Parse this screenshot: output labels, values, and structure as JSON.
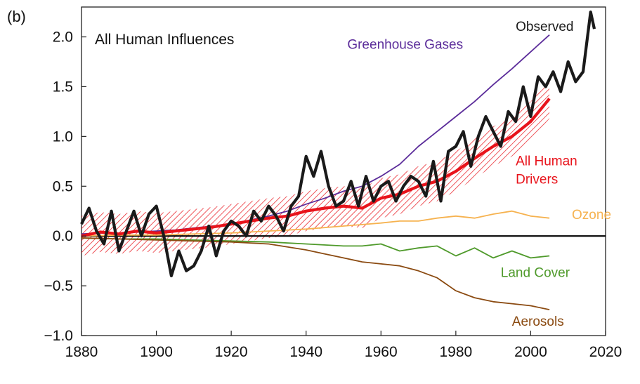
{
  "chart_data": {
    "type": "line",
    "panel_label": "(b)",
    "title": "All Human Influences",
    "xlim": [
      1880,
      2020
    ],
    "ylim": [
      -1.0,
      2.3
    ],
    "xticks": [
      1880,
      1900,
      1920,
      1940,
      1960,
      1980,
      2000,
      2020
    ],
    "yticks": [
      -1.0,
      -0.5,
      0.0,
      0.5,
      1.0,
      1.5,
      2.0
    ],
    "ytick_labels": [
      "−1.0",
      "−0.5",
      "0.0",
      "0.5",
      "1.0",
      "1.5",
      "2.0"
    ],
    "grid": false,
    "zero_line": true,
    "series": [
      {
        "name": "Greenhouse Gases",
        "color": "#5b2c9a",
        "x": [
          1880,
          1885,
          1890,
          1895,
          1900,
          1905,
          1910,
          1915,
          1920,
          1925,
          1930,
          1935,
          1940,
          1945,
          1950,
          1955,
          1960,
          1965,
          1970,
          1975,
          1980,
          1985,
          1990,
          1995,
          2000,
          2005
        ],
        "y": [
          0.02,
          0.03,
          0.02,
          0.04,
          0.05,
          0.06,
          0.08,
          0.1,
          0.12,
          0.16,
          0.2,
          0.25,
          0.32,
          0.38,
          0.45,
          0.5,
          0.6,
          0.72,
          0.9,
          1.05,
          1.2,
          1.35,
          1.52,
          1.68,
          1.85,
          2.02
        ]
      },
      {
        "name": "Ozone",
        "color": "#f6b24f",
        "x": [
          1880,
          1890,
          1900,
          1910,
          1920,
          1930,
          1940,
          1950,
          1960,
          1965,
          1970,
          1975,
          1980,
          1985,
          1990,
          1995,
          2000,
          2005
        ],
        "y": [
          0.0,
          0.01,
          0.01,
          0.02,
          0.03,
          0.05,
          0.07,
          0.1,
          0.13,
          0.15,
          0.15,
          0.18,
          0.2,
          0.18,
          0.22,
          0.25,
          0.2,
          0.18
        ]
      },
      {
        "name": "Land Cover",
        "color": "#4f9a2b",
        "x": [
          1880,
          1890,
          1900,
          1910,
          1920,
          1930,
          1940,
          1950,
          1955,
          1960,
          1965,
          1970,
          1975,
          1980,
          1985,
          1990,
          1995,
          2000,
          2005
        ],
        "y": [
          -0.02,
          -0.03,
          -0.03,
          -0.04,
          -0.05,
          -0.06,
          -0.08,
          -0.1,
          -0.1,
          -0.08,
          -0.15,
          -0.12,
          -0.1,
          -0.2,
          -0.12,
          -0.22,
          -0.15,
          -0.22,
          -0.2
        ]
      },
      {
        "name": "Aerosols",
        "color": "#8b4b12",
        "x": [
          1880,
          1890,
          1900,
          1910,
          1920,
          1930,
          1940,
          1945,
          1950,
          1955,
          1960,
          1965,
          1970,
          1975,
          1980,
          1985,
          1990,
          1995,
          2000,
          2005
        ],
        "y": [
          -0.02,
          -0.03,
          -0.04,
          -0.05,
          -0.06,
          -0.08,
          -0.14,
          -0.18,
          -0.22,
          -0.26,
          -0.28,
          -0.3,
          -0.35,
          -0.42,
          -0.55,
          -0.62,
          -0.66,
          -0.68,
          -0.7,
          -0.74
        ]
      },
      {
        "name": "All Human Drivers",
        "label_lines": [
          "All Human",
          "Drivers"
        ],
        "color": "#e8131b",
        "x": [
          1880,
          1885,
          1890,
          1895,
          1900,
          1905,
          1910,
          1915,
          1920,
          1925,
          1930,
          1935,
          1940,
          1945,
          1950,
          1955,
          1960,
          1965,
          1970,
          1975,
          1980,
          1985,
          1990,
          1995,
          2000,
          2005
        ],
        "y": [
          0.0,
          0.04,
          0.02,
          0.05,
          0.03,
          0.05,
          0.07,
          0.09,
          0.12,
          0.15,
          0.18,
          0.2,
          0.25,
          0.28,
          0.3,
          0.28,
          0.38,
          0.42,
          0.5,
          0.55,
          0.65,
          0.78,
          0.9,
          1.0,
          1.15,
          1.38
        ],
        "band_half_width": 0.2
      },
      {
        "name": "Observed",
        "color": "#1a1a1a",
        "x": [
          1880,
          1882,
          1884,
          1886,
          1888,
          1890,
          1892,
          1894,
          1896,
          1898,
          1900,
          1902,
          1904,
          1906,
          1908,
          1910,
          1912,
          1914,
          1916,
          1918,
          1920,
          1922,
          1924,
          1926,
          1928,
          1930,
          1932,
          1934,
          1936,
          1938,
          1940,
          1942,
          1944,
          1946,
          1948,
          1950,
          1952,
          1954,
          1956,
          1958,
          1960,
          1962,
          1964,
          1966,
          1968,
          1970,
          1972,
          1974,
          1976,
          1978,
          1980,
          1982,
          1984,
          1986,
          1988,
          1990,
          1992,
          1994,
          1996,
          1998,
          2000,
          2002,
          2004,
          2006,
          2008,
          2010,
          2012,
          2014,
          2016,
          2017
        ],
        "y": [
          0.12,
          0.28,
          0.05,
          -0.08,
          0.25,
          -0.15,
          0.05,
          0.25,
          0.0,
          0.22,
          0.3,
          0.0,
          -0.4,
          -0.15,
          -0.35,
          -0.3,
          -0.15,
          0.1,
          -0.2,
          0.05,
          0.15,
          0.1,
          0.0,
          0.25,
          0.15,
          0.3,
          0.2,
          0.05,
          0.3,
          0.4,
          0.8,
          0.6,
          0.85,
          0.5,
          0.3,
          0.35,
          0.55,
          0.3,
          0.6,
          0.35,
          0.5,
          0.55,
          0.35,
          0.5,
          0.6,
          0.55,
          0.4,
          0.75,
          0.35,
          0.85,
          0.9,
          1.05,
          0.7,
          1.0,
          1.2,
          1.05,
          0.9,
          1.25,
          1.15,
          1.5,
          1.2,
          1.6,
          1.5,
          1.65,
          1.45,
          1.75,
          1.55,
          1.65,
          2.25,
          2.08
        ]
      }
    ]
  }
}
